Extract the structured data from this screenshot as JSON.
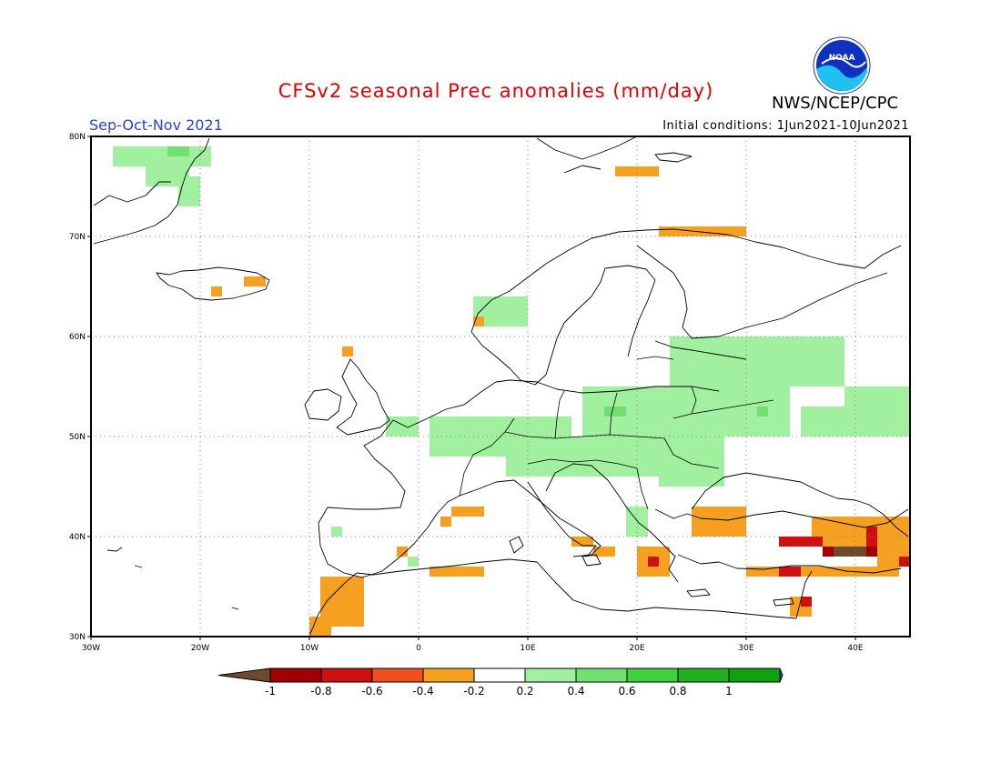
{
  "title": "CFSv2 seasonal Prec anomalies (mm/day)",
  "season": "Sep-Oct-Nov 2021",
  "initial_conditions": "Initial conditions: 1Jun2021-10Jun2021",
  "agency": "NWS/NCEP/CPC",
  "logo_text": "NOAA",
  "lon_ticks": [
    "30W",
    "20W",
    "10W",
    "0",
    "10E",
    "20E",
    "30E",
    "40E"
  ],
  "lat_ticks": [
    "80N",
    "70N",
    "60N",
    "50N",
    "40N",
    "30N"
  ],
  "colorbar": {
    "labels": [
      "-1",
      "-0.8",
      "-0.6",
      "-0.4",
      "-0.2",
      "0.2",
      "0.4",
      "0.6",
      "0.8",
      "1"
    ],
    "colors": [
      "#6b4a2f",
      "#a00000",
      "#d01010",
      "#f05020",
      "#f5a020",
      "#ffffff",
      "#a0f0a0",
      "#70e070",
      "#40d040",
      "#20b020",
      "#10a010",
      "#2060e0"
    ]
  },
  "chart_data": {
    "type": "heatmap",
    "variable": "Prec anomalies (mm/day)",
    "lon_range": [
      -30,
      45
    ],
    "lat_range": [
      30,
      80
    ],
    "cells": [
      {
        "lat": [
          77,
          79
        ],
        "lon": [
          -28,
          -19
        ],
        "color": "#a0f0a0"
      },
      {
        "lat": [
          75,
          78
        ],
        "lon": [
          -25,
          -21
        ],
        "color": "#a0f0a0"
      },
      {
        "lat": [
          73,
          76
        ],
        "lon": [
          -22,
          -20
        ],
        "color": "#a0f0a0"
      },
      {
        "lat": [
          78,
          79
        ],
        "lon": [
          -23,
          -21
        ],
        "color": "#70e070"
      },
      {
        "lat": [
          64,
          65
        ],
        "lon": [
          -19,
          -18
        ],
        "color": "#f5a020"
      },
      {
        "lat": [
          65,
          66
        ],
        "lon": [
          -16,
          -14
        ],
        "color": "#f5a020"
      },
      {
        "lat": [
          76,
          77
        ],
        "lon": [
          18,
          22
        ],
        "color": "#f5a020"
      },
      {
        "lat": [
          70,
          71
        ],
        "lon": [
          22,
          30
        ],
        "color": "#f5a020"
      },
      {
        "lat": [
          61,
          64
        ],
        "lon": [
          5,
          10
        ],
        "color": "#a0f0a0"
      },
      {
        "lat": [
          61,
          62
        ],
        "lon": [
          5,
          6
        ],
        "color": "#f5a020"
      },
      {
        "lat": [
          58,
          59
        ],
        "lon": [
          -7,
          -6
        ],
        "color": "#f5a020"
      },
      {
        "lat": [
          50,
          52
        ],
        "lon": [
          -3,
          0
        ],
        "color": "#a0f0a0"
      },
      {
        "lat": [
          48,
          52
        ],
        "lon": [
          1,
          14
        ],
        "color": "#a0f0a0"
      },
      {
        "lat": [
          46,
          50
        ],
        "lon": [
          8,
          28
        ],
        "color": "#a0f0a0"
      },
      {
        "lat": [
          50,
          55
        ],
        "lon": [
          15,
          34
        ],
        "color": "#a0f0a0"
      },
      {
        "lat": [
          55,
          60
        ],
        "lon": [
          23,
          31
        ],
        "color": "#a0f0a0"
      },
      {
        "lat": [
          55,
          60
        ],
        "lon": [
          31,
          39
        ],
        "color": "#a0f0a0"
      },
      {
        "lat": [
          50,
          53
        ],
        "lon": [
          35,
          45
        ],
        "color": "#a0f0a0"
      },
      {
        "lat": [
          53,
          55
        ],
        "lon": [
          39,
          45
        ],
        "color": "#a0f0a0"
      },
      {
        "lat": [
          52,
          53
        ],
        "lon": [
          17,
          19
        ],
        "color": "#70e070"
      },
      {
        "lat": [
          52,
          53
        ],
        "lon": [
          31,
          32
        ],
        "color": "#70e070"
      },
      {
        "lat": [
          45,
          47
        ],
        "lon": [
          22,
          28
        ],
        "color": "#a0f0a0"
      },
      {
        "lat": [
          40,
          43
        ],
        "lon": [
          19,
          21
        ],
        "color": "#a0f0a0"
      },
      {
        "lat": [
          40,
          41
        ],
        "lon": [
          -8,
          -7
        ],
        "color": "#a0f0a0"
      },
      {
        "lat": [
          37,
          38
        ],
        "lon": [
          -1,
          0
        ],
        "color": "#a0f0a0"
      },
      {
        "lat": [
          31,
          36
        ],
        "lon": [
          -9,
          -5
        ],
        "color": "#f5a020"
      },
      {
        "lat": [
          30,
          32
        ],
        "lon": [
          -10,
          -8
        ],
        "color": "#f5a020"
      },
      {
        "lat": [
          35,
          36
        ],
        "lon": [
          -6,
          -5
        ],
        "color": "#f5a020"
      },
      {
        "lat": [
          42,
          43
        ],
        "lon": [
          3,
          6
        ],
        "color": "#f5a020"
      },
      {
        "lat": [
          41,
          42
        ],
        "lon": [
          2,
          3
        ],
        "color": "#f5a020"
      },
      {
        "lat": [
          38,
          39
        ],
        "lon": [
          -2,
          -1
        ],
        "color": "#f5a020"
      },
      {
        "lat": [
          36,
          37
        ],
        "lon": [
          1,
          6
        ],
        "color": "#f5a020"
      },
      {
        "lat": [
          39,
          40
        ],
        "lon": [
          14,
          16
        ],
        "color": "#f5a020"
      },
      {
        "lat": [
          38,
          39
        ],
        "lon": [
          16,
          18
        ],
        "color": "#f5a020"
      },
      {
        "lat": [
          40,
          43
        ],
        "lon": [
          25,
          30
        ],
        "color": "#f5a020"
      },
      {
        "lat": [
          36,
          39
        ],
        "lon": [
          20,
          23
        ],
        "color": "#f5a020"
      },
      {
        "lat": [
          37,
          38
        ],
        "lon": [
          21,
          22
        ],
        "color": "#d01010"
      },
      {
        "lat": [
          36,
          37
        ],
        "lon": [
          30,
          44
        ],
        "color": "#f5a020"
      },
      {
        "lat": [
          36,
          37
        ],
        "lon": [
          33,
          35
        ],
        "color": "#d01010"
      },
      {
        "lat": [
          32,
          34
        ],
        "lon": [
          34,
          36
        ],
        "color": "#f5a020"
      },
      {
        "lat": [
          33,
          34
        ],
        "lon": [
          35,
          36
        ],
        "color": "#d01010"
      },
      {
        "lat": [
          39,
          42
        ],
        "lon": [
          36,
          45
        ],
        "color": "#f5a020"
      },
      {
        "lat": [
          39,
          40
        ],
        "lon": [
          33,
          37
        ],
        "color": "#d01010"
      },
      {
        "lat": [
          38,
          39
        ],
        "lon": [
          37,
          42
        ],
        "color": "#a00000"
      },
      {
        "lat": [
          38,
          39
        ],
        "lon": [
          38,
          41
        ],
        "color": "#6b4a2f"
      },
      {
        "lat": [
          39,
          41
        ],
        "lon": [
          41,
          42
        ],
        "color": "#d01010"
      },
      {
        "lat": [
          37,
          39
        ],
        "lon": [
          42,
          45
        ],
        "color": "#f5a020"
      },
      {
        "lat": [
          37,
          38
        ],
        "lon": [
          44,
          45
        ],
        "color": "#d01010"
      }
    ]
  }
}
